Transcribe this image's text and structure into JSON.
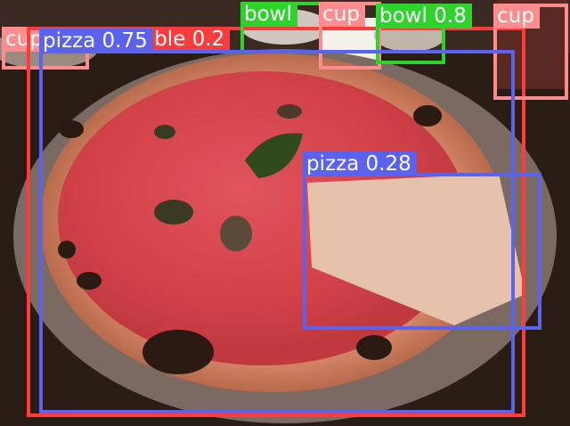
{
  "detections": [
    {
      "label": "cup 0.58",
      "color": "#ff8d8d"
    },
    {
      "label": "table 0.2",
      "color": "#ff3b3b"
    },
    {
      "label": "bowl",
      "color": "#2cd42c"
    },
    {
      "label": "cup",
      "color": "#ff8d8d"
    },
    {
      "label": "bowl 0.8",
      "color": "#2cd42c"
    },
    {
      "label": "cup",
      "color": "#ff8d8d"
    },
    {
      "label": "pizza 0.75",
      "color": "#5a62ee"
    },
    {
      "label": "pizza 0.28",
      "color": "#5a62ee"
    }
  ],
  "scene": {
    "subject": "pizza-on-plate",
    "background_color": "#2a1d16"
  }
}
